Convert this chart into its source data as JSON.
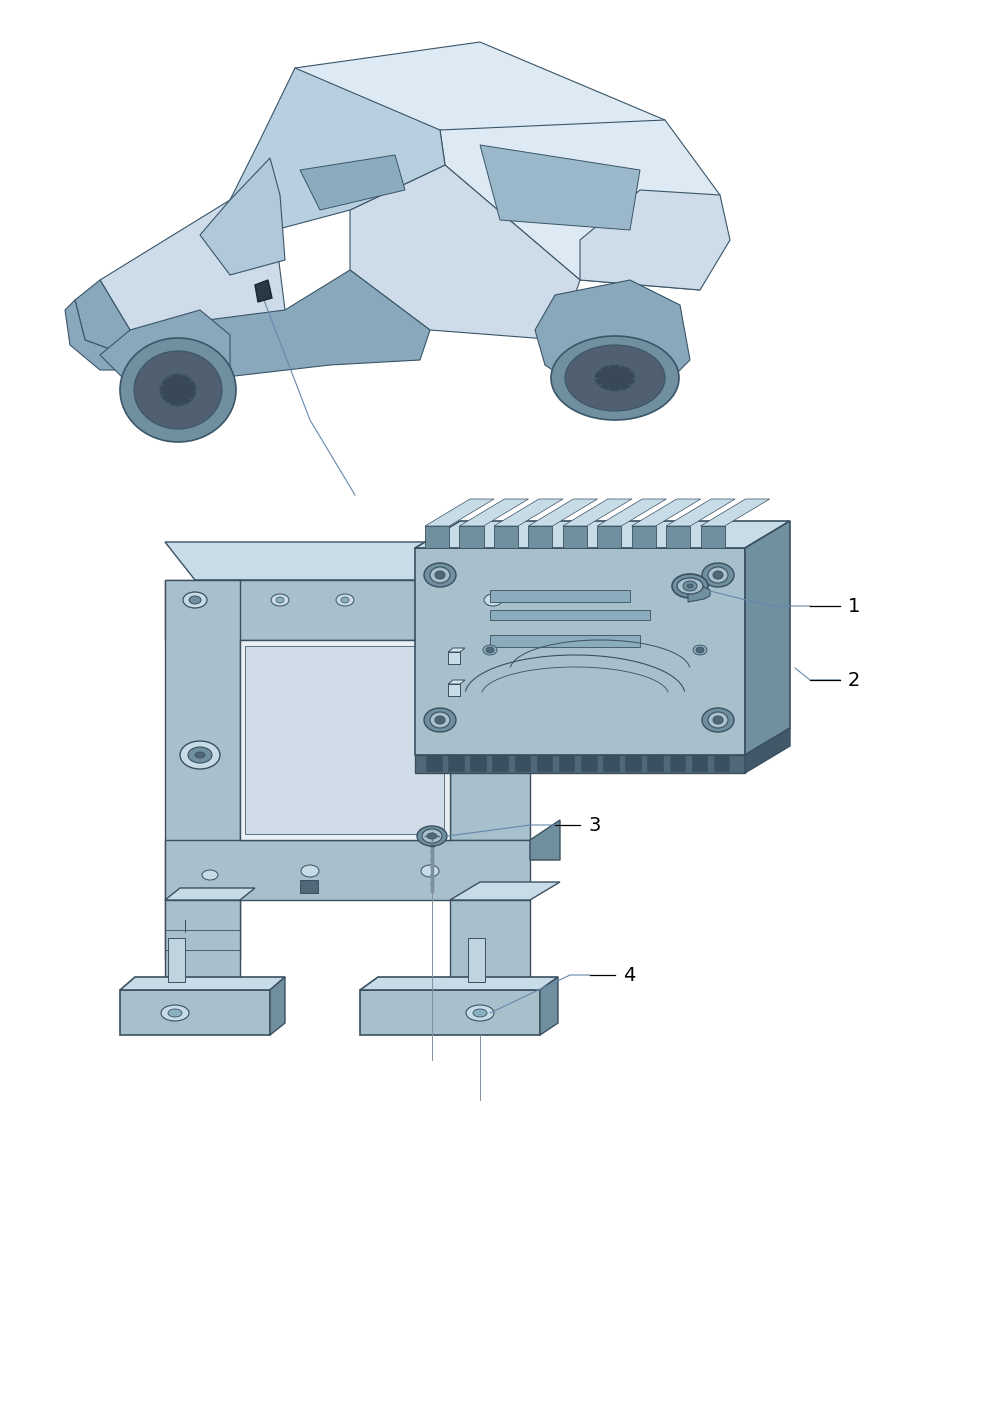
{
  "bg_color": "#ffffff",
  "car_fill": "#cddce8",
  "car_light": "#ddeaf4",
  "car_dark": "#8aa8bc",
  "car_edge": "#3a5568",
  "part_fill": "#a8bfcc",
  "part_light": "#c8dce8",
  "part_dark": "#7090a0",
  "part_edge": "#3a5060",
  "part_very_dark": "#506878",
  "ann_line": "#7090a8",
  "fig_width": 9.92,
  "fig_height": 14.03,
  "dpi": 100
}
